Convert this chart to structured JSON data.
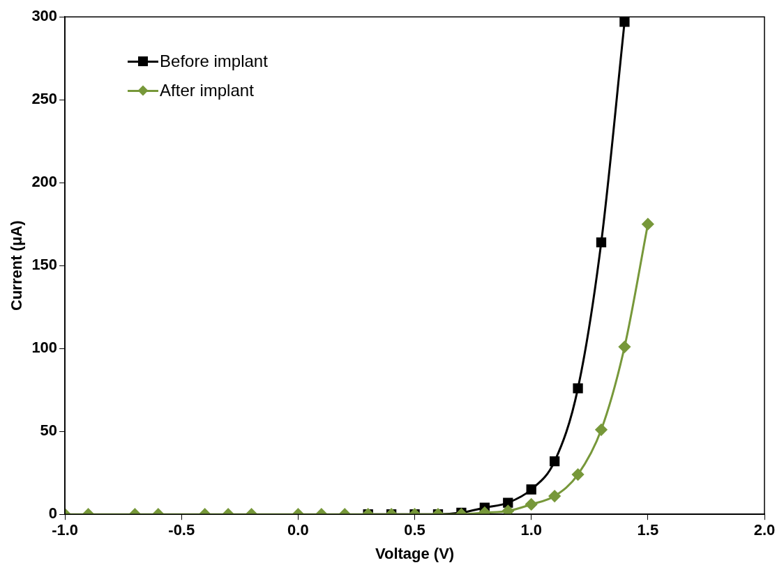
{
  "chart_data": {
    "type": "line",
    "xlabel": "Voltage (V)",
    "ylabel": "Current (μA)",
    "xlim": [
      -1,
      2
    ],
    "xticks": [
      {
        "value": -1,
        "label": "-1.0"
      },
      {
        "value": -0.5,
        "label": "-0.5"
      },
      {
        "value": 0,
        "label": "0.0"
      },
      {
        "value": 0.5,
        "label": "0.5"
      },
      {
        "value": 1,
        "label": "1.0"
      },
      {
        "value": 1.5,
        "label": "1.5"
      },
      {
        "value": 2,
        "label": "2.0"
      }
    ],
    "ylim": [
      0,
      300
    ],
    "yticks": [
      0,
      50,
      100,
      150,
      200,
      250,
      300
    ],
    "grid": false,
    "legend": "top left",
    "line_style": "solid",
    "series": [
      {
        "name": "Before implant",
        "color": "#000000",
        "marker": "square",
        "x": [
          0.3,
          0.4,
          0.5,
          0.6,
          0.7,
          0.8,
          0.9,
          1.0,
          1.1,
          1.2,
          1.3,
          1.4
        ],
        "values": [
          0,
          0,
          0,
          0,
          1,
          4,
          7,
          15,
          32,
          76,
          164,
          297
        ]
      },
      {
        "name": "After implant",
        "color": "#77983a",
        "marker": "diamond",
        "x": [
          -1.0,
          -0.9,
          -0.7,
          -0.6,
          -0.4,
          -0.3,
          -0.2,
          0.0,
          0.1,
          0.2,
          0.3,
          0.4,
          0.5,
          0.6,
          0.7,
          0.8,
          0.9,
          1.0,
          1.1,
          1.2,
          1.3,
          1.4,
          1.5
        ],
        "values": [
          0,
          0,
          0,
          0,
          0,
          0,
          0,
          0,
          0,
          0,
          0,
          0,
          0,
          0,
          0,
          1,
          2,
          6,
          11,
          24,
          51,
          101,
          175
        ]
      }
    ]
  }
}
